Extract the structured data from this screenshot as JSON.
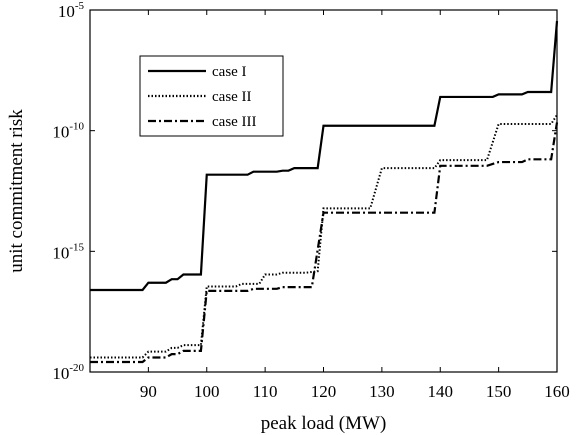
{
  "chart_data": {
    "type": "line",
    "title": "",
    "xlabel": "peak load (MW)",
    "ylabel": "unit commitment risk",
    "xlim": [
      80,
      160
    ],
    "ylim": [
      1e-20,
      1e-05
    ],
    "yscale": "log",
    "grid": false,
    "legend_position": "top-left",
    "x_ticks": [
      90,
      100,
      110,
      120,
      130,
      140,
      150,
      160
    ],
    "x_tick_labels": [
      "90",
      "100",
      "110",
      "120",
      "130",
      "140",
      "150",
      "160"
    ],
    "y_ticks": [
      1e-20,
      1e-15,
      1e-10,
      1e-05
    ],
    "y_tick_labels": [
      {
        "base": "10",
        "exp": "-20"
      },
      {
        "base": "10",
        "exp": "-15"
      },
      {
        "base": "10",
        "exp": "-10"
      },
      {
        "base": "10",
        "exp": "-5"
      }
    ],
    "series": [
      {
        "name": "case I",
        "style": "solid",
        "color": "#000000",
        "points": [
          [
            80,
            2.5e-17
          ],
          [
            89,
            2.5e-17
          ],
          [
            90,
            5e-17
          ],
          [
            93,
            5e-17
          ],
          [
            94,
            7e-17
          ],
          [
            95,
            7e-17
          ],
          [
            96,
            1.1e-16
          ],
          [
            99,
            1.1e-16
          ],
          [
            100,
            1.5e-12
          ],
          [
            107,
            1.5e-12
          ],
          [
            108,
            2e-12
          ],
          [
            112,
            2e-12
          ],
          [
            113,
            2.2e-12
          ],
          [
            114,
            2.2e-12
          ],
          [
            115,
            2.8e-12
          ],
          [
            119,
            2.8e-12
          ],
          [
            120,
            1.6e-10
          ],
          [
            139,
            1.6e-10
          ],
          [
            140,
            2.5e-09
          ],
          [
            149,
            2.5e-09
          ],
          [
            150,
            3.2e-09
          ],
          [
            154,
            3.2e-09
          ],
          [
            155,
            4e-09
          ],
          [
            159,
            4e-09
          ],
          [
            160,
            3.5e-06
          ]
        ]
      },
      {
        "name": "case II",
        "style": "dotted",
        "color": "#000000",
        "points": [
          [
            80,
            4e-20
          ],
          [
            89,
            4e-20
          ],
          [
            90,
            7e-20
          ],
          [
            93,
            7e-20
          ],
          [
            94,
            1e-19
          ],
          [
            95,
            1e-19
          ],
          [
            96,
            1.3e-19
          ],
          [
            99,
            1.3e-19
          ],
          [
            100,
            3.5e-17
          ],
          [
            105,
            3.5e-17
          ],
          [
            106,
            4.5e-17
          ],
          [
            109,
            4.5e-17
          ],
          [
            110,
            1.1e-16
          ],
          [
            112,
            1.1e-16
          ],
          [
            113,
            1.3e-16
          ],
          [
            117,
            1.3e-16
          ],
          [
            119,
            1.5e-16
          ],
          [
            120,
            6e-14
          ],
          [
            128,
            6e-14
          ],
          [
            130,
            2.8e-12
          ],
          [
            139,
            2.8e-12
          ],
          [
            140,
            6e-12
          ],
          [
            148,
            6e-12
          ],
          [
            150,
            1.9e-10
          ],
          [
            159,
            1.9e-10
          ],
          [
            160,
            4.5e-10
          ]
        ]
      },
      {
        "name": "case III",
        "style": "dashdot",
        "color": "#000000",
        "points": [
          [
            80,
            2.6e-20
          ],
          [
            89,
            2.6e-20
          ],
          [
            90,
            4e-20
          ],
          [
            93,
            4e-20
          ],
          [
            94,
            5.5e-20
          ],
          [
            95,
            5.5e-20
          ],
          [
            96,
            7.5e-20
          ],
          [
            99,
            7.5e-20
          ],
          [
            100,
            2.3e-17
          ],
          [
            107,
            2.3e-17
          ],
          [
            108,
            2.8e-17
          ],
          [
            112,
            2.8e-17
          ],
          [
            113,
            3.3e-17
          ],
          [
            118,
            3.3e-17
          ],
          [
            120,
            4e-14
          ],
          [
            139,
            4e-14
          ],
          [
            140,
            3.5e-12
          ],
          [
            148,
            3.5e-12
          ],
          [
            150,
            5e-12
          ],
          [
            154,
            5e-12
          ],
          [
            155,
            6.5e-12
          ],
          [
            159,
            6.5e-12
          ],
          [
            160,
            2.2e-10
          ]
        ]
      }
    ]
  }
}
